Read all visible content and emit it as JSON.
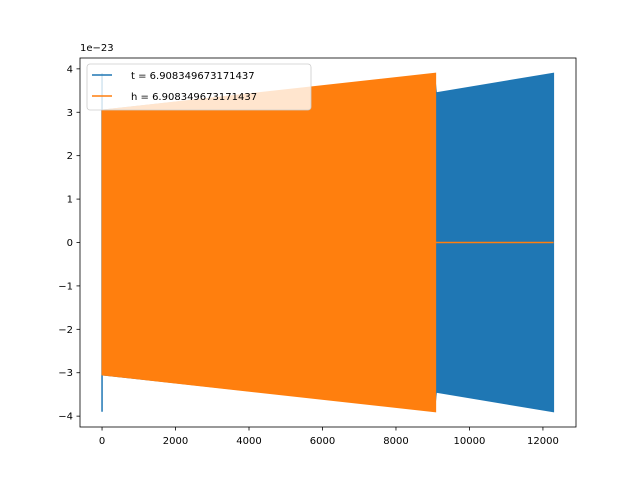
{
  "chart_data": {
    "type": "area",
    "title": "",
    "xlabel": "",
    "ylabel": "",
    "offset_text": "1e−23",
    "xlim": [
      -600,
      12900
    ],
    "ylim": [
      -4.25,
      4.25
    ],
    "xticks": [
      0,
      2000,
      4000,
      6000,
      8000,
      10000,
      12000
    ],
    "xtick_labels": [
      "0",
      "2000",
      "4000",
      "6000",
      "8000",
      "10000",
      "12000"
    ],
    "yticks": [
      -4,
      -3,
      -2,
      -1,
      0,
      1,
      2,
      3,
      4
    ],
    "ytick_labels": [
      "−4",
      "−3",
      "−2",
      "−1",
      "0",
      "1",
      "2",
      "3",
      "4"
    ],
    "grid": false,
    "legend_position": "upper-left",
    "series": [
      {
        "name": "t = 6.908349673171437",
        "color": "#1f77b4",
        "spike": [
          0,
          3.9
        ],
        "x": [
          0,
          9050,
          9100,
          12290
        ],
        "upper": [
          3.05,
          3.88,
          3.45,
          3.9
        ],
        "lower": [
          -3.05,
          -3.88,
          -3.45,
          -3.9
        ]
      },
      {
        "name": "h = 6.908349673171437",
        "color": "#ff7f0e",
        "x": [
          0,
          9080
        ],
        "upper": [
          3.05,
          3.9
        ],
        "lower": [
          -3.05,
          -3.9
        ],
        "tail_x": [
          9080,
          12290
        ],
        "tail_y": [
          0,
          0
        ]
      }
    ]
  }
}
